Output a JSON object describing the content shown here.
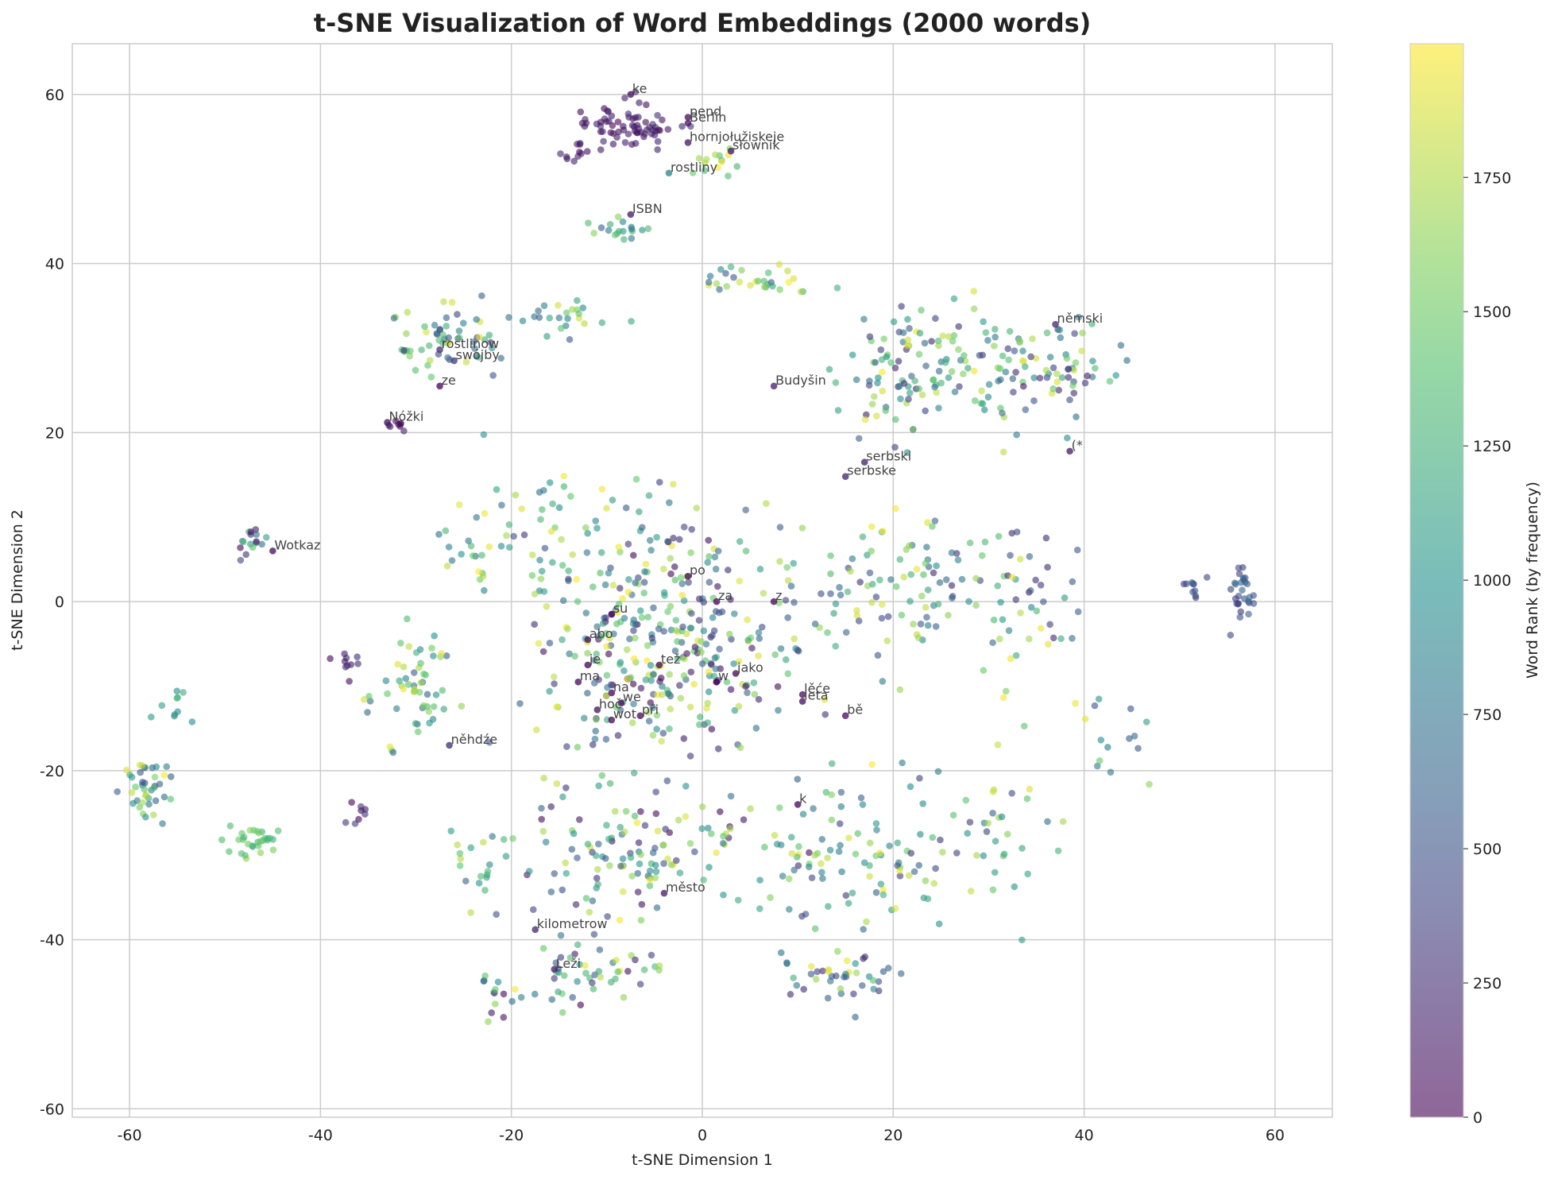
{
  "chart_data": {
    "type": "scatter",
    "title": "t-SNE Visualization of Word Embeddings (2000 words)",
    "xlabel": "t-SNE Dimension 1",
    "ylabel": "t-SNE Dimension 2",
    "xlim": [
      -66,
      66
    ],
    "ylim": [
      -61,
      66
    ],
    "xticks": [
      -60,
      -40,
      -20,
      0,
      20,
      40,
      60
    ],
    "yticks": [
      -60,
      -40,
      -20,
      0,
      20,
      40,
      60
    ],
    "grid": true,
    "colormap": [
      "#440154",
      "#3b528b",
      "#21918c",
      "#5ec962",
      "#fde725"
    ],
    "point_alpha": 0.6,
    "colorbar": {
      "label": "Word Rank (by frequency)",
      "min": 0,
      "max": 1999,
      "ticks": [
        0,
        250,
        500,
        750,
        1000,
        1250,
        1500,
        1750
      ]
    },
    "clusters": [
      {
        "x": -8,
        "y": 56,
        "spread": [
          5,
          2.5
        ],
        "rank": [
          0,
          300
        ],
        "n": 70
      },
      {
        "x": 1,
        "y": 52,
        "spread": [
          2,
          1.5
        ],
        "rank": [
          1300,
          1999
        ],
        "n": 14
      },
      {
        "x": -9,
        "y": 44,
        "spread": [
          2.5,
          1.5
        ],
        "rank": [
          600,
          1800
        ],
        "n": 18
      },
      {
        "x": -13,
        "y": 53,
        "spread": [
          1.5,
          1.5
        ],
        "rank": [
          0,
          250
        ],
        "n": 10
      },
      {
        "x": 6,
        "y": 38,
        "spread": [
          7,
          2
        ],
        "rank": [
          500,
          1999
        ],
        "n": 30
      },
      {
        "x": -27,
        "y": 31,
        "spread": [
          6,
          4
        ],
        "rank": [
          300,
          1999
        ],
        "n": 60
      },
      {
        "x": -14,
        "y": 34,
        "spread": [
          4,
          2
        ],
        "rank": [
          500,
          1999
        ],
        "n": 22
      },
      {
        "x": -32,
        "y": 21,
        "spread": [
          1,
          0.4
        ],
        "rank": [
          0,
          200
        ],
        "n": 8
      },
      {
        "x": 21,
        "y": 27,
        "spread": [
          6,
          7
        ],
        "rank": [
          200,
          1999
        ],
        "n": 95
      },
      {
        "x": 31,
        "y": 28,
        "spread": [
          5,
          7
        ],
        "rank": [
          200,
          1999
        ],
        "n": 60
      },
      {
        "x": 39,
        "y": 28,
        "spread": [
          4,
          5
        ],
        "rank": [
          100,
          1900
        ],
        "n": 40
      },
      {
        "x": 56.5,
        "y": 1,
        "spread": [
          1.8,
          3
        ],
        "rank": [
          300,
          650
        ],
        "n": 28
      },
      {
        "x": 51.5,
        "y": 2,
        "spread": [
          1.5,
          2
        ],
        "rank": [
          200,
          700
        ],
        "n": 10
      },
      {
        "x": -47,
        "y": 7,
        "spread": [
          2.5,
          1.5
        ],
        "rank": [
          0,
          1500
        ],
        "n": 16
      },
      {
        "x": -31,
        "y": -11,
        "spread": [
          4,
          6
        ],
        "rank": [
          500,
          1999
        ],
        "n": 55
      },
      {
        "x": -58,
        "y": -22,
        "spread": [
          2.5,
          3
        ],
        "rank": [
          400,
          1999
        ],
        "n": 40
      },
      {
        "x": -47,
        "y": -28,
        "spread": [
          2.5,
          2
        ],
        "rank": [
          1200,
          1700
        ],
        "n": 30
      },
      {
        "x": -55,
        "y": -12,
        "spread": [
          1.5,
          2
        ],
        "rank": [
          900,
          1400
        ],
        "n": 10
      },
      {
        "x": -37,
        "y": -8,
        "spread": [
          1.5,
          3
        ],
        "rank": [
          0,
          400
        ],
        "n": 10
      },
      {
        "x": -4,
        "y": -5,
        "spread": [
          14,
          12
        ],
        "rank": [
          0,
          1999
        ],
        "n": 330
      },
      {
        "x": -12,
        "y": 8,
        "spread": [
          10,
          6
        ],
        "rank": [
          300,
          1999
        ],
        "n": 60
      },
      {
        "x": 20,
        "y": 2,
        "spread": [
          10,
          8
        ],
        "rank": [
          200,
          1999
        ],
        "n": 90
      },
      {
        "x": 34,
        "y": 0,
        "spread": [
          5,
          8
        ],
        "rank": [
          200,
          1999
        ],
        "n": 45
      },
      {
        "x": -6,
        "y": -30,
        "spread": [
          13,
          7
        ],
        "rank": [
          0,
          1999
        ],
        "n": 130
      },
      {
        "x": 16,
        "y": -30,
        "spread": [
          10,
          8
        ],
        "rank": [
          300,
          1999
        ],
        "n": 90
      },
      {
        "x": -11,
        "y": -44,
        "spread": [
          8,
          3.5
        ],
        "rank": [
          0,
          1999
        ],
        "n": 45
      },
      {
        "x": 14,
        "y": -44,
        "spread": [
          6,
          3
        ],
        "rank": [
          200,
          1999
        ],
        "n": 40
      },
      {
        "x": -23,
        "y": -32,
        "spread": [
          3,
          4
        ],
        "rank": [
          400,
          1999
        ],
        "n": 20
      },
      {
        "x": 30,
        "y": -27,
        "spread": [
          6,
          8
        ],
        "rank": [
          200,
          1999
        ],
        "n": 35
      },
      {
        "x": -21,
        "y": -47,
        "spread": [
          3,
          3
        ],
        "rank": [
          0,
          1999
        ],
        "n": 15
      },
      {
        "x": 44,
        "y": -15,
        "spread": [
          4,
          6
        ],
        "rank": [
          500,
          1999
        ],
        "n": 15
      },
      {
        "x": -36,
        "y": -25,
        "spread": [
          2,
          2
        ],
        "rank": [
          0,
          400
        ],
        "n": 8
      },
      {
        "x": -24,
        "y": 6,
        "spread": [
          4,
          4
        ],
        "rank": [
          400,
          1999
        ],
        "n": 20
      }
    ],
    "labels": [
      {
        "text": "ke",
        "x": -7.5,
        "y": 60,
        "rank": 40
      },
      {
        "text": "pend",
        "x": -1.5,
        "y": 57.3,
        "rank": 60
      },
      {
        "text": "Berlin",
        "x": -1.5,
        "y": 56.6,
        "rank": 80
      },
      {
        "text": "hornjołužiskeje",
        "x": -1.5,
        "y": 54.3,
        "rank": 120
      },
      {
        "text": "słownik",
        "x": 3,
        "y": 53.3,
        "rank": 90
      },
      {
        "text": "rostliny",
        "x": -3.5,
        "y": 50.7,
        "rank": 900
      },
      {
        "text": "ISBN",
        "x": -7.5,
        "y": 45.8,
        "rank": 130
      },
      {
        "text": "němski",
        "x": 37,
        "y": 32.8,
        "rank": 210
      },
      {
        "text": "rostlinow",
        "x": -27.5,
        "y": 29.8,
        "rank": 300
      },
      {
        "text": "swójby",
        "x": -26,
        "y": 28.5,
        "rank": 350
      },
      {
        "text": "ze",
        "x": -27.5,
        "y": 25.5,
        "rank": 15
      },
      {
        "text": "Budyšin",
        "x": 7.5,
        "y": 25.5,
        "rank": 180
      },
      {
        "text": "Nóžki",
        "x": -33,
        "y": 21.2,
        "rank": 100
      },
      {
        "text": "(*",
        "x": 38.5,
        "y": 17.8,
        "rank": 150
      },
      {
        "text": "serbski",
        "x": 17,
        "y": 16.5,
        "rank": 170
      },
      {
        "text": "serbske",
        "x": 15,
        "y": 14.8,
        "rank": 190
      },
      {
        "text": "Wotkaz",
        "x": -45,
        "y": 6,
        "rank": 70
      },
      {
        "text": "po",
        "x": -1.5,
        "y": 3,
        "rank": 20
      },
      {
        "text": "za",
        "x": 1.5,
        "y": 0,
        "rank": 25
      },
      {
        "text": "z",
        "x": 7.5,
        "y": 0,
        "rank": 10
      },
      {
        "text": "su",
        "x": -9.5,
        "y": -1.5,
        "rank": 30
      },
      {
        "text": "abo",
        "x": -12,
        "y": -4.5,
        "rank": 45
      },
      {
        "text": "tež",
        "x": -4.5,
        "y": -7.5,
        "rank": 35
      },
      {
        "text": "je",
        "x": -12,
        "y": -7.5,
        "rank": 5
      },
      {
        "text": "jako",
        "x": 3.5,
        "y": -8.5,
        "rank": 28
      },
      {
        "text": "ma",
        "x": -13,
        "y": -9.5,
        "rank": 50
      },
      {
        "text": "w",
        "x": 1.5,
        "y": -9.5,
        "rank": 2
      },
      {
        "text": "lěće",
        "x": 10.5,
        "y": -11,
        "rank": 75
      },
      {
        "text": "leta",
        "x": 10.5,
        "y": -11.8,
        "rank": 65
      },
      {
        "text": "na",
        "x": -9.5,
        "y": -10.8,
        "rank": 8
      },
      {
        "text": "we",
        "x": -8.5,
        "y": -12,
        "rank": 12
      },
      {
        "text": "hoč",
        "x": -11,
        "y": -12.8,
        "rank": 95
      },
      {
        "text": "bě",
        "x": 15,
        "y": -13.5,
        "rank": 55
      },
      {
        "text": "wot",
        "x": -9.5,
        "y": -14,
        "rank": 22
      },
      {
        "text": "při",
        "x": -6.5,
        "y": -13.5,
        "rank": 33
      },
      {
        "text": "něhdźe",
        "x": -26.5,
        "y": -17,
        "rank": 260
      },
      {
        "text": "k",
        "x": 10,
        "y": -24,
        "rank": 18
      },
      {
        "text": "město",
        "x": -4,
        "y": -34.5,
        "rank": 140
      },
      {
        "text": "kilometrow",
        "x": -17.5,
        "y": -38.8,
        "rank": 230
      },
      {
        "text": "Leži",
        "x": -15.5,
        "y": -43.5,
        "rank": 160
      }
    ]
  }
}
